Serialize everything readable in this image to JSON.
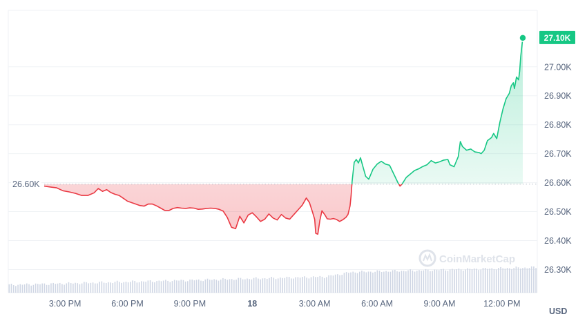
{
  "chart_data": {
    "type": "line",
    "currency_label": "USD",
    "watermark": "CoinMarketCap",
    "reference": {
      "value": 26.595,
      "label": "26.60K"
    },
    "last_price": {
      "value": 27.1,
      "label": "27.10K"
    },
    "ylim": [
      26.22,
      27.195
    ],
    "y_ticks": [
      {
        "value": 27.0,
        "label": "27.00K"
      },
      {
        "value": 26.9,
        "label": "26.90K"
      },
      {
        "value": 26.8,
        "label": "26.80K"
      },
      {
        "value": 26.7,
        "label": "26.70K"
      },
      {
        "value": 26.6,
        "label": "26.60K"
      },
      {
        "value": 26.5,
        "label": "26.50K"
      },
      {
        "value": 26.4,
        "label": "26.40K"
      },
      {
        "value": 26.3,
        "label": "26.30K"
      }
    ],
    "x_unit": "hours from start of window",
    "xlim": [
      0,
      23.2
    ],
    "x_ticks": [
      {
        "value": 1.0,
        "label": "3:00 PM",
        "bold": false
      },
      {
        "value": 4.0,
        "label": "6:00 PM",
        "bold": false
      },
      {
        "value": 7.0,
        "label": "9:00 PM",
        "bold": false
      },
      {
        "value": 10.0,
        "label": "18",
        "bold": true
      },
      {
        "value": 13.0,
        "label": "3:00 AM",
        "bold": false
      },
      {
        "value": 16.0,
        "label": "6:00 AM",
        "bold": false
      },
      {
        "value": 19.0,
        "label": "9:00 AM",
        "bold": false
      },
      {
        "value": 22.0,
        "label": "12:00 PM",
        "bold": false
      }
    ],
    "colors": {
      "down": "#ea3943",
      "up": "#16c784",
      "volume": "#cfd6e4",
      "grid": "#eff2f5",
      "axis_text": "#58667e"
    },
    "price": [
      [
        0.0,
        26.588
      ],
      [
        0.3,
        26.585
      ],
      [
        0.6,
        26.582
      ],
      [
        0.9,
        26.572
      ],
      [
        1.2,
        26.568
      ],
      [
        1.5,
        26.563
      ],
      [
        1.8,
        26.556
      ],
      [
        2.1,
        26.556
      ],
      [
        2.4,
        26.565
      ],
      [
        2.6,
        26.58
      ],
      [
        2.8,
        26.57
      ],
      [
        3.0,
        26.576
      ],
      [
        3.2,
        26.566
      ],
      [
        3.4,
        26.56
      ],
      [
        3.6,
        26.556
      ],
      [
        3.8,
        26.546
      ],
      [
        4.0,
        26.536
      ],
      [
        4.2,
        26.531
      ],
      [
        4.4,
        26.526
      ],
      [
        4.6,
        26.521
      ],
      [
        4.8,
        26.519
      ],
      [
        5.0,
        26.526
      ],
      [
        5.2,
        26.526
      ],
      [
        5.4,
        26.52
      ],
      [
        5.6,
        26.512
      ],
      [
        5.8,
        26.504
      ],
      [
        6.0,
        26.504
      ],
      [
        6.2,
        26.511
      ],
      [
        6.4,
        26.514
      ],
      [
        6.6,
        26.512
      ],
      [
        6.8,
        26.511
      ],
      [
        7.0,
        26.513
      ],
      [
        7.2,
        26.512
      ],
      [
        7.4,
        26.508
      ],
      [
        7.6,
        26.509
      ],
      [
        7.8,
        26.511
      ],
      [
        8.0,
        26.512
      ],
      [
        8.2,
        26.511
      ],
      [
        8.4,
        26.508
      ],
      [
        8.6,
        26.502
      ],
      [
        8.8,
        26.48
      ],
      [
        9.0,
        26.446
      ],
      [
        9.2,
        26.441
      ],
      [
        9.4,
        26.484
      ],
      [
        9.6,
        26.461
      ],
      [
        9.8,
        26.488
      ],
      [
        10.0,
        26.496
      ],
      [
        10.2,
        26.482
      ],
      [
        10.4,
        26.466
      ],
      [
        10.6,
        26.474
      ],
      [
        10.8,
        26.492
      ],
      [
        11.0,
        26.478
      ],
      [
        11.2,
        26.471
      ],
      [
        11.4,
        26.49
      ],
      [
        11.6,
        26.478
      ],
      [
        11.8,
        26.474
      ],
      [
        12.0,
        26.49
      ],
      [
        12.2,
        26.506
      ],
      [
        12.4,
        26.522
      ],
      [
        12.6,
        26.547
      ],
      [
        12.75,
        26.531
      ],
      [
        12.9,
        26.497
      ],
      [
        13.0,
        26.473
      ],
      [
        13.05,
        26.425
      ],
      [
        13.15,
        26.422
      ],
      [
        13.25,
        26.47
      ],
      [
        13.35,
        26.503
      ],
      [
        13.5,
        26.488
      ],
      [
        13.6,
        26.475
      ],
      [
        13.75,
        26.474
      ],
      [
        13.9,
        26.476
      ],
      [
        14.05,
        26.473
      ],
      [
        14.2,
        26.466
      ],
      [
        14.35,
        26.472
      ],
      [
        14.5,
        26.48
      ],
      [
        14.6,
        26.49
      ],
      [
        14.7,
        26.52
      ],
      [
        14.75,
        26.555
      ],
      [
        14.8,
        26.605
      ],
      [
        14.9,
        26.67
      ],
      [
        15.0,
        26.68
      ],
      [
        15.1,
        26.668
      ],
      [
        15.2,
        26.686
      ],
      [
        15.3,
        26.66
      ],
      [
        15.45,
        26.622
      ],
      [
        15.6,
        26.612
      ],
      [
        15.8,
        26.646
      ],
      [
        16.0,
        26.664
      ],
      [
        16.2,
        26.674
      ],
      [
        16.4,
        26.664
      ],
      [
        16.6,
        26.66
      ],
      [
        16.8,
        26.63
      ],
      [
        17.0,
        26.6
      ],
      [
        17.1,
        26.588
      ],
      [
        17.2,
        26.595
      ],
      [
        17.4,
        26.618
      ],
      [
        17.6,
        26.63
      ],
      [
        17.8,
        26.642
      ],
      [
        18.0,
        26.648
      ],
      [
        18.2,
        26.656
      ],
      [
        18.4,
        26.662
      ],
      [
        18.6,
        26.676
      ],
      [
        18.8,
        26.668
      ],
      [
        19.0,
        26.672
      ],
      [
        19.2,
        26.678
      ],
      [
        19.4,
        26.68
      ],
      [
        19.5,
        26.662
      ],
      [
        19.7,
        26.655
      ],
      [
        19.9,
        26.69
      ],
      [
        20.0,
        26.742
      ],
      [
        20.1,
        26.725
      ],
      [
        20.3,
        26.712
      ],
      [
        20.5,
        26.716
      ],
      [
        20.7,
        26.706
      ],
      [
        20.9,
        26.704
      ],
      [
        21.0,
        26.7
      ],
      [
        21.15,
        26.712
      ],
      [
        21.3,
        26.745
      ],
      [
        21.5,
        26.756
      ],
      [
        21.6,
        26.77
      ],
      [
        21.75,
        26.752
      ],
      [
        21.9,
        26.808
      ],
      [
        22.05,
        26.855
      ],
      [
        22.2,
        26.89
      ],
      [
        22.35,
        26.908
      ],
      [
        22.45,
        26.935
      ],
      [
        22.55,
        26.945
      ],
      [
        22.6,
        26.925
      ],
      [
        22.7,
        26.965
      ],
      [
        22.8,
        26.955
      ],
      [
        22.85,
        26.985
      ],
      [
        22.9,
        27.035
      ],
      [
        23.0,
        27.1
      ]
    ],
    "volume": {
      "bars": 240,
      "start": 0.04,
      "end": 0.11,
      "step_at": 0.6,
      "step_to": 0.13
    }
  }
}
